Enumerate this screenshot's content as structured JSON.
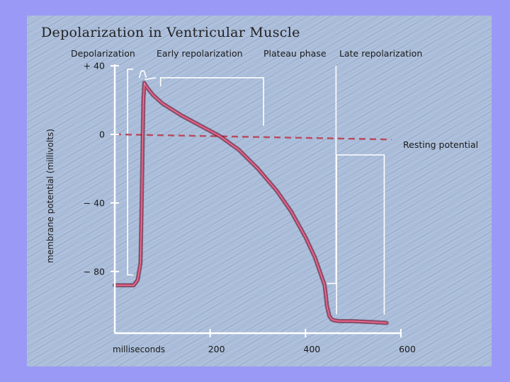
{
  "chart_data": {
    "type": "line",
    "title": "Depolarization in Ventricular Muscle",
    "xlabel": "milliseconds",
    "ylabel": "membrane potential (millivolts)",
    "x_ticks": [
      {
        "value": 200,
        "label": "200"
      },
      {
        "value": 400,
        "label": "400"
      },
      {
        "value": 600,
        "label": "600"
      }
    ],
    "y_ticks": [
      {
        "value": 40,
        "label": "+ 40"
      },
      {
        "value": 0,
        "label": "0"
      },
      {
        "value": -40,
        "label": "− 40"
      },
      {
        "value": -80,
        "label": "− 80"
      }
    ],
    "xlim": [
      0,
      600
    ],
    "ylim": [
      -116,
      40
    ],
    "grid": false,
    "colors": {
      "trace": "#c0335a",
      "dashed": "#b84a5e",
      "bracket": "#ffffff"
    },
    "series": [
      {
        "name": "",
        "x": [
          0,
          40,
          48,
          54,
          57,
          60,
          62,
          66,
          80,
          100,
          140,
          180,
          220,
          260,
          300,
          340,
          370,
          400,
          420,
          440,
          445,
          450,
          455,
          460,
          470,
          500,
          540,
          570
        ],
        "y": [
          -88,
          -88,
          -85,
          -75,
          -30,
          20,
          30,
          28,
          23,
          18,
          11,
          5,
          -1,
          -9,
          -20,
          -33,
          -45,
          -60,
          -72,
          -88,
          -100,
          -106,
          -108,
          -108.5,
          -109,
          -109,
          -109.5,
          -110
        ]
      }
    ],
    "resting_line": {
      "x": [
        0,
        580
      ],
      "y": [
        0,
        -3
      ]
    },
    "annotations": [
      {
        "id": "depolarization",
        "text": "Depolarization",
        "x_range": [
          47,
          62
        ]
      },
      {
        "id": "early",
        "text": "Early repolarization",
        "x_range": [
          66,
          86
        ]
      },
      {
        "id": "plateau",
        "text": "Plateau phase",
        "x_range": [
          96,
          312
        ]
      },
      {
        "id": "late",
        "text": "Late repolarization",
        "x_range": [
          445,
          458
        ]
      },
      {
        "id": "resting",
        "text": "Resting potential",
        "x_range": [
          465,
          565
        ]
      }
    ]
  }
}
